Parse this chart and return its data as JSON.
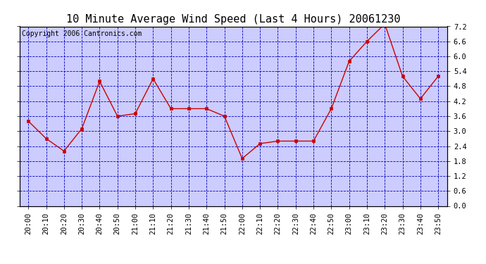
{
  "title": "10 Minute Average Wind Speed (Last 4 Hours) 20061230",
  "copyright": "Copyright 2006 Cantronics.com",
  "x_labels": [
    "20:00",
    "20:10",
    "20:20",
    "20:30",
    "20:40",
    "20:50",
    "21:00",
    "21:10",
    "21:20",
    "21:30",
    "21:40",
    "21:50",
    "22:00",
    "22:10",
    "22:20",
    "22:30",
    "22:40",
    "22:50",
    "23:00",
    "23:10",
    "23:20",
    "23:30",
    "23:40",
    "23:50"
  ],
  "y_values": [
    3.4,
    2.7,
    2.2,
    3.1,
    5.0,
    3.6,
    3.7,
    5.1,
    3.9,
    3.9,
    3.9,
    3.6,
    1.9,
    2.5,
    2.6,
    2.6,
    2.6,
    3.9,
    5.8,
    6.6,
    7.3,
    5.2,
    4.3,
    5.2
  ],
  "line_color": "#cc0000",
  "marker_color": "#cc0000",
  "bg_color": "#ccccff",
  "grid_color": "#0000bb",
  "title_color": "#000000",
  "copyright_color": "#000000",
  "ylim": [
    0.0,
    7.2
  ],
  "yticks": [
    0.0,
    0.6,
    1.2,
    1.8,
    2.4,
    3.0,
    3.6,
    4.2,
    4.8,
    5.4,
    6.0,
    6.6,
    7.2
  ],
  "title_fontsize": 11,
  "copyright_fontsize": 7,
  "tick_fontsize": 7.5,
  "outer_bg": "#ffffff"
}
